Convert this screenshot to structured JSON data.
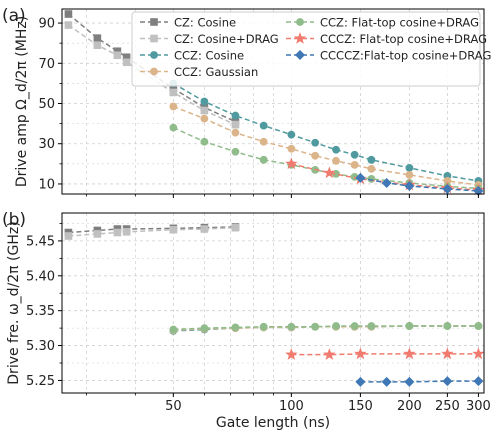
{
  "colors": {
    "cz_cosine": "#7f7f7f",
    "cz_cosine_drag": "#c0c0c0",
    "ccz_cosine": "#4f9a9f",
    "ccz_gaussian": "#dcb48a",
    "ccz_flattop": "#8fbc8a",
    "cccz_flattop": "#f07b6e",
    "ccccz_flattop": "#3f78b5",
    "grid": "#cfcfcf",
    "frame": "#000000"
  },
  "chart_data": [
    {
      "type": "line",
      "panel_label": "(a)",
      "xscale": "log",
      "xlim": [
        26,
        310
      ],
      "ylim": [
        5,
        97
      ],
      "xticks": [
        50,
        100,
        150,
        200,
        250,
        300
      ],
      "yticks": [
        10,
        30,
        50,
        70,
        90
      ],
      "xlabel": "",
      "ylabel": "Drive amp Ω_d/2π (MHz)",
      "grid": true,
      "legend_position": "top-right",
      "legend": {
        "col1": [
          "CZ: Cosine",
          "CZ: Cosine+DRAG",
          "CCZ: Cosine",
          "CCZ: Gaussian"
        ],
        "col2": [
          "CCZ: Flat-top cosine+DRAG",
          "CCCZ: Flat-top cosine+DRAG",
          "CCCCZ:Flat-top cosine+DRAG"
        ]
      },
      "series": [
        {
          "name": "CZ: Cosine",
          "key": "cz_cosine",
          "marker": "square",
          "x": [
            27,
            32,
            36,
            38,
            50,
            60,
            72
          ],
          "y": [
            94.5,
            82.5,
            76,
            73,
            57.5,
            48,
            41
          ]
        },
        {
          "name": "CZ: Cosine+DRAG",
          "key": "cz_cosine_drag",
          "marker": "square",
          "x": [
            27,
            32,
            36,
            38,
            50,
            60,
            72
          ],
          "y": [
            89,
            79,
            74,
            70.5,
            55.5,
            46.5,
            39.5
          ]
        },
        {
          "name": "CCZ: Cosine",
          "key": "ccz_cosine",
          "marker": "circle",
          "x": [
            50,
            60,
            72,
            85,
            100,
            115,
            130,
            145,
            160,
            200,
            250,
            300
          ],
          "y": [
            60,
            51,
            44,
            39,
            34.5,
            30.5,
            27,
            24.5,
            22,
            18,
            14,
            11.5
          ]
        },
        {
          "name": "CCZ: Gaussian",
          "key": "ccz_gaussian",
          "marker": "circle",
          "x": [
            50,
            60,
            72,
            85,
            100,
            115,
            130,
            145,
            160,
            200,
            250,
            300
          ],
          "y": [
            48.5,
            42.5,
            35.5,
            31,
            27.5,
            24,
            21.5,
            19.5,
            17.5,
            14.5,
            11.5,
            9.5
          ]
        },
        {
          "name": "CCZ: Flat-top cosine+DRAG",
          "key": "ccz_flattop",
          "marker": "circle",
          "x": [
            50,
            60,
            72,
            85,
            100,
            115,
            130,
            145,
            160,
            200,
            250,
            300
          ],
          "y": [
            38,
            31,
            26,
            22,
            19.5,
            17,
            15,
            13.5,
            12.5,
            10.5,
            8.8,
            7.8
          ]
        },
        {
          "name": "CCCZ: Flat-top cosine+DRAG",
          "key": "cccz_flattop",
          "marker": "star",
          "x": [
            100,
            125,
            150,
            200,
            250,
            300
          ],
          "y": [
            20,
            15.5,
            12.5,
            9.5,
            8,
            7
          ]
        },
        {
          "name": "CCCCZ:Flat-top cosine+DRAG",
          "key": "ccccz_flattop",
          "marker": "diamond",
          "x": [
            150,
            175,
            200,
            250,
            300
          ],
          "y": [
            13,
            10.5,
            9,
            7.5,
            6.5
          ]
        }
      ]
    },
    {
      "type": "line",
      "panel_label": "(b)",
      "xscale": "log",
      "xlim": [
        26,
        310
      ],
      "ylim": [
        5.232,
        5.49
      ],
      "xticks": [
        50,
        100,
        150,
        200,
        250,
        300
      ],
      "xticklabels": [
        "50",
        "100",
        "150",
        "200",
        "250",
        "300"
      ],
      "yticks": [
        5.25,
        5.3,
        5.35,
        5.4,
        5.45
      ],
      "yticklabels": [
        "5.25",
        "5.30",
        "5.35",
        "5.40",
        "5.45"
      ],
      "xlabel": "Gate length (ns)",
      "ylabel": "Drive fre. ω_d/2π (GHz)",
      "grid": true,
      "series": [
        {
          "key": "cz_cosine",
          "marker": "square",
          "x": [
            27,
            32,
            36,
            38,
            50,
            60,
            72
          ],
          "y": [
            5.462,
            5.465,
            5.467,
            5.467,
            5.468,
            5.469,
            5.47
          ]
        },
        {
          "key": "cz_cosine_drag",
          "marker": "square",
          "x": [
            27,
            32,
            36,
            38,
            50,
            60,
            72
          ],
          "y": [
            5.457,
            5.46,
            5.462,
            5.463,
            5.466,
            5.467,
            5.469
          ]
        },
        {
          "key": "ccz_cosine",
          "marker": "circle",
          "x": [
            50,
            60,
            72,
            85,
            100,
            115,
            130,
            145,
            160,
            200,
            250,
            300
          ],
          "y": [
            5.321,
            5.323,
            5.325,
            5.326,
            5.326,
            5.327,
            5.327,
            5.327,
            5.327,
            5.328,
            5.328,
            5.328
          ]
        },
        {
          "key": "ccz_gaussian",
          "marker": "circle",
          "x": [
            50,
            60,
            72,
            85,
            100,
            115,
            130,
            145,
            160,
            200,
            250,
            300
          ],
          "y": [
            5.322,
            5.324,
            5.325,
            5.326,
            5.326,
            5.327,
            5.327,
            5.327,
            5.327,
            5.328,
            5.328,
            5.328
          ]
        },
        {
          "key": "ccz_flattop",
          "marker": "circle",
          "x": [
            50,
            60,
            72,
            85,
            100,
            115,
            130,
            145,
            160,
            200,
            250,
            300
          ],
          "y": [
            5.323,
            5.325,
            5.326,
            5.327,
            5.327,
            5.327,
            5.328,
            5.328,
            5.328,
            5.328,
            5.328,
            5.328
          ]
        },
        {
          "key": "cccz_flattop",
          "marker": "star",
          "x": [
            100,
            125,
            150,
            200,
            250,
            300
          ],
          "y": [
            5.287,
            5.287,
            5.288,
            5.288,
            5.288,
            5.288
          ]
        },
        {
          "key": "ccccz_flattop",
          "marker": "diamond",
          "x": [
            150,
            175,
            200,
            250,
            300
          ],
          "y": [
            5.248,
            5.248,
            5.248,
            5.249,
            5.249
          ]
        }
      ]
    }
  ]
}
